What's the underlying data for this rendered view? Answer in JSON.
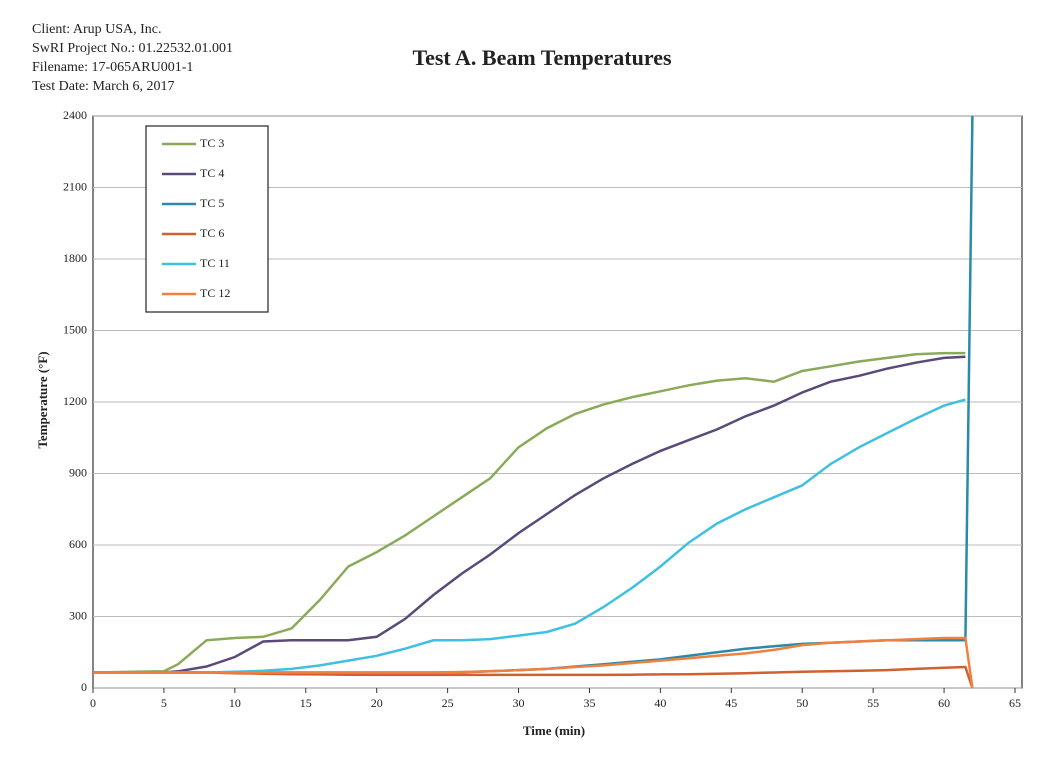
{
  "header": {
    "lines": [
      "Client: Arup USA, Inc.",
      "SwRI Project No.: 01.22532.01.001",
      "Filename: 17-065ARU001-1",
      "Test Date: March 6, 2017"
    ]
  },
  "chart_data": {
    "type": "line",
    "title": "Test A. Beam Temperatures",
    "x_label": "Time (min)",
    "y_label": "Temperature (°F)",
    "x": [
      0,
      5,
      6,
      8,
      10,
      12,
      14,
      16,
      18,
      20,
      22,
      24,
      26,
      28,
      30,
      32,
      34,
      36,
      38,
      40,
      42,
      44,
      46,
      48,
      50,
      52,
      54,
      56,
      58,
      60,
      61.5,
      62
    ],
    "series": [
      {
        "name": "TC 3",
        "color": "#8aaa5a",
        "values": [
          65,
          70,
          100,
          200,
          210,
          215,
          250,
          370,
          510,
          570,
          640,
          720,
          800,
          880,
          1010,
          1090,
          1150,
          1190,
          1220,
          1245,
          1270,
          1290,
          1300,
          1285,
          1330,
          1350,
          1370,
          1385,
          1400,
          1405,
          1405,
          null
        ]
      },
      {
        "name": "TC 4",
        "color": "#5a4a7a",
        "values": [
          65,
          65,
          70,
          90,
          130,
          195,
          200,
          200,
          200,
          215,
          290,
          390,
          480,
          560,
          650,
          730,
          810,
          880,
          940,
          995,
          1040,
          1085,
          1140,
          1185,
          1240,
          1285,
          1310,
          1340,
          1365,
          1385,
          1390,
          null
        ]
      },
      {
        "name": "TC 5",
        "color": "#2a8aaa",
        "values": [
          65,
          65,
          65,
          65,
          65,
          65,
          65,
          65,
          65,
          65,
          65,
          65,
          66,
          70,
          75,
          80,
          90,
          100,
          110,
          120,
          135,
          150,
          165,
          175,
          185,
          190,
          195,
          200,
          200,
          200,
          200,
          2400
        ]
      },
      {
        "name": "TC 6",
        "color": "#d06030",
        "values": [
          65,
          65,
          65,
          65,
          62,
          60,
          58,
          57,
          56,
          55,
          55,
          55,
          55,
          55,
          55,
          55,
          55,
          55,
          56,
          57,
          58,
          60,
          62,
          65,
          68,
          70,
          72,
          75,
          80,
          85,
          88,
          0
        ]
      },
      {
        "name": "TC 11",
        "color": "#40c0e0",
        "values": [
          65,
          65,
          65,
          65,
          68,
          72,
          80,
          95,
          115,
          135,
          165,
          200,
          200,
          205,
          220,
          235,
          270,
          340,
          420,
          510,
          610,
          690,
          750,
          800,
          850,
          940,
          1010,
          1070,
          1130,
          1185,
          1210,
          null
        ]
      },
      {
        "name": "TC 12",
        "color": "#f08040",
        "values": [
          65,
          65,
          65,
          65,
          65,
          65,
          65,
          65,
          65,
          65,
          65,
          65,
          67,
          70,
          75,
          80,
          88,
          95,
          105,
          115,
          125,
          135,
          145,
          160,
          180,
          190,
          195,
          200,
          205,
          210,
          210,
          0
        ]
      }
    ],
    "xlim": [
      0,
      65
    ],
    "xticks": [
      0,
      5,
      10,
      15,
      20,
      25,
      30,
      35,
      40,
      45,
      50,
      55,
      60,
      65
    ],
    "ylim": [
      0,
      2400
    ],
    "yticks": [
      0,
      300,
      600,
      900,
      1200,
      1500,
      1800,
      2100,
      2400
    ],
    "grid": true,
    "legend": "upper-left"
  }
}
